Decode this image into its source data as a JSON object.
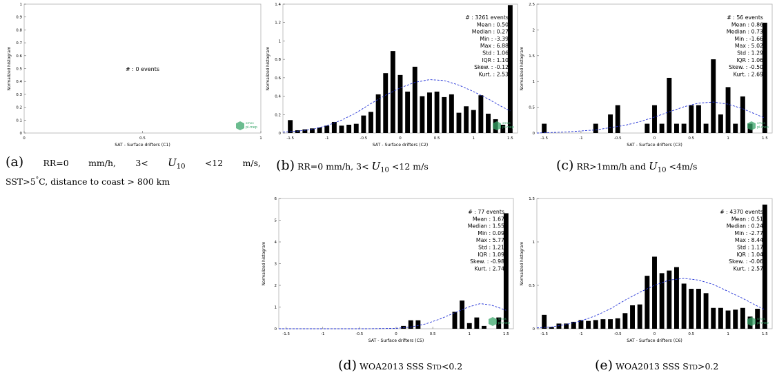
{
  "chart_data": [
    {
      "id": "a",
      "type": "bar",
      "xlabel": "SAT - Surface drifters (C1)",
      "ylabel": "Normalized histogram",
      "xlim": [
        0,
        1
      ],
      "ylim": [
        0,
        1
      ],
      "xticks": [
        "0",
        "0.5",
        "1"
      ],
      "yticks": [
        "0",
        "0.1",
        "0.2",
        "0.3",
        "0.4",
        "0.5",
        "0.6",
        "0.7",
        "0.8",
        "0.9",
        "1"
      ],
      "stats_lines": [
        "#  : 0 events"
      ],
      "x": [],
      "values": [],
      "fit": []
    },
    {
      "id": "b",
      "type": "bar",
      "xlabel": "SAT - Surface drifters (C2)",
      "ylabel": "Normalized histogram",
      "xlim": [
        -1.6,
        1.6
      ],
      "ylim": [
        0,
        1.4
      ],
      "xticks": [
        "-1.5",
        "-1",
        "-0.5",
        "0",
        "0.5",
        "1",
        "1.5"
      ],
      "yticks": [
        "0",
        "0.2",
        "0.4",
        "0.6",
        "0.8",
        "1",
        "1.2",
        "1.4"
      ],
      "stats_lines": [
        "#  : 3261 events",
        "Mean : 0.50",
        "Median : 0.27",
        "Min : -3.39",
        "Max : 6.88",
        "Std : 1.06",
        "IQR : 1.10",
        "Skew. : -0.12",
        "Kurt. : 2.53"
      ],
      "x": [
        -1.5,
        -1.4,
        -1.3,
        -1.2,
        -1.1,
        -1.0,
        -0.9,
        -0.8,
        -0.7,
        -0.6,
        -0.5,
        -0.4,
        -0.3,
        -0.2,
        -0.1,
        0.0,
        0.1,
        0.2,
        0.3,
        0.4,
        0.5,
        0.6,
        0.7,
        0.8,
        0.9,
        1.0,
        1.1,
        1.2,
        1.3,
        1.4,
        1.5
      ],
      "values": [
        0.14,
        0.03,
        0.04,
        0.05,
        0.06,
        0.08,
        0.12,
        0.08,
        0.09,
        0.1,
        0.19,
        0.23,
        0.42,
        0.65,
        0.89,
        0.63,
        0.45,
        0.72,
        0.4,
        0.44,
        0.45,
        0.39,
        0.42,
        0.22,
        0.29,
        0.25,
        0.41,
        0.21,
        0.15,
        0.09,
        1.39
      ],
      "fit": [
        [
          -1.6,
          0.01
        ],
        [
          -1.4,
          0.02
        ],
        [
          -1.2,
          0.04
        ],
        [
          -1.0,
          0.08
        ],
        [
          -0.8,
          0.14
        ],
        [
          -0.6,
          0.22
        ],
        [
          -0.4,
          0.32
        ],
        [
          -0.2,
          0.41
        ],
        [
          0.0,
          0.49
        ],
        [
          0.2,
          0.55
        ],
        [
          0.4,
          0.58
        ],
        [
          0.6,
          0.57
        ],
        [
          0.8,
          0.52
        ],
        [
          1.0,
          0.45
        ],
        [
          1.2,
          0.37
        ],
        [
          1.4,
          0.28
        ],
        [
          1.5,
          0.24
        ]
      ]
    },
    {
      "id": "c",
      "type": "bar",
      "xlabel": "SAT - Surface drifters (C3)",
      "ylabel": "Normalized histogram",
      "xlim": [
        -1.6,
        1.6
      ],
      "ylim": [
        0,
        2.5
      ],
      "xticks": [
        "-1.5",
        "-1",
        "-0.5",
        "0",
        "0.5",
        "1",
        "1.5"
      ],
      "yticks": [
        "0",
        "0.5",
        "1",
        "1.5",
        "2",
        "2.5"
      ],
      "stats_lines": [
        "#  : 56 events",
        "Mean : 0.86",
        "Median : 0.73",
        "Min : -1.66",
        "Max : 5.02",
        "Std : 1.29",
        "IQR : 1.06",
        "Skew. : -0.50",
        "Kurt. : 2.69"
      ],
      "x": [
        -1.5,
        -0.8,
        -0.6,
        -0.5,
        -0.1,
        0.0,
        0.1,
        0.2,
        0.3,
        0.4,
        0.5,
        0.6,
        0.7,
        0.8,
        0.9,
        1.0,
        1.1,
        1.2,
        1.3,
        1.5
      ],
      "values": [
        0.18,
        0.18,
        0.36,
        0.54,
        0.18,
        0.54,
        0.18,
        1.07,
        0.18,
        0.18,
        0.54,
        0.54,
        0.18,
        1.43,
        0.36,
        0.89,
        0.18,
        0.71,
        0.18,
        2.14
      ],
      "fit": [
        [
          -1.6,
          0.0
        ],
        [
          -1.2,
          0.02
        ],
        [
          -0.8,
          0.06
        ],
        [
          -0.4,
          0.15
        ],
        [
          -0.2,
          0.22
        ],
        [
          0.0,
          0.31
        ],
        [
          0.2,
          0.41
        ],
        [
          0.4,
          0.51
        ],
        [
          0.6,
          0.58
        ],
        [
          0.8,
          0.6
        ],
        [
          1.0,
          0.56
        ],
        [
          1.2,
          0.47
        ],
        [
          1.4,
          0.35
        ],
        [
          1.5,
          0.29
        ]
      ]
    },
    {
      "id": "d",
      "type": "bar",
      "xlabel": "SAT - Surface drifters (C5)",
      "ylabel": "Normalized histogram",
      "xlim": [
        -1.6,
        1.6
      ],
      "ylim": [
        0,
        6
      ],
      "xticks": [
        "-1.5",
        "-1",
        "-0.5",
        "0",
        "0.5",
        "1",
        "1.5"
      ],
      "yticks": [
        "0",
        "1",
        "2",
        "3",
        "4",
        "5",
        "6"
      ],
      "stats_lines": [
        "#  : 77 events",
        "Mean : 1.67",
        "Median : 1.55",
        "Min : 0.09",
        "Max : 5.77",
        "Std : 1.21",
        "IQR : 1.09",
        "Skew. : -0.98",
        "Kurt. : 2.74"
      ],
      "x": [
        0.1,
        0.2,
        0.3,
        0.8,
        0.9,
        1.0,
        1.1,
        1.2,
        1.4,
        1.5
      ],
      "values": [
        0.13,
        0.39,
        0.39,
        0.78,
        1.3,
        0.26,
        0.52,
        0.13,
        0.52,
        5.32
      ],
      "fit": [
        [
          -1.6,
          0.0
        ],
        [
          -0.4,
          0.0
        ],
        [
          0.0,
          0.02
        ],
        [
          0.2,
          0.08
        ],
        [
          0.4,
          0.22
        ],
        [
          0.6,
          0.45
        ],
        [
          0.8,
          0.74
        ],
        [
          1.0,
          1.02
        ],
        [
          1.15,
          1.16
        ],
        [
          1.3,
          1.09
        ],
        [
          1.4,
          0.97
        ],
        [
          1.5,
          0.85
        ]
      ]
    },
    {
      "id": "e",
      "type": "bar",
      "xlabel": "SAT - Surface drifters (C6)",
      "ylabel": "Normalized histogram",
      "xlim": [
        -1.6,
        1.6
      ],
      "ylim": [
        0,
        1.5
      ],
      "xticks": [
        "-1.5",
        "-1",
        "-0.5",
        "0",
        "0.5",
        "1",
        "1.5"
      ],
      "yticks": [
        "0",
        "0.5",
        "1",
        "1.5"
      ],
      "stats_lines": [
        "#  : 4370 events",
        "Mean : 0.51",
        "Median : 0.24",
        "Min : -2.77",
        "Max : 8.44",
        "Std : 1.17",
        "IQR : 1.04",
        "Skew. : -0.06",
        "Kurt. : 2.57"
      ],
      "x": [
        -1.5,
        -1.4,
        -1.3,
        -1.2,
        -1.1,
        -1.0,
        -0.9,
        -0.8,
        -0.7,
        -0.6,
        -0.5,
        -0.4,
        -0.3,
        -0.2,
        -0.1,
        0.0,
        0.1,
        0.2,
        0.3,
        0.4,
        0.5,
        0.6,
        0.7,
        0.8,
        0.9,
        1.0,
        1.1,
        1.2,
        1.3,
        1.4,
        1.5
      ],
      "values": [
        0.16,
        0.02,
        0.06,
        0.06,
        0.08,
        0.1,
        0.09,
        0.1,
        0.11,
        0.11,
        0.12,
        0.18,
        0.27,
        0.28,
        0.61,
        0.83,
        0.64,
        0.67,
        0.71,
        0.52,
        0.46,
        0.46,
        0.41,
        0.24,
        0.24,
        0.21,
        0.22,
        0.24,
        0.14,
        0.23,
        1.43
      ],
      "fit": [
        [
          -1.6,
          0.01
        ],
        [
          -1.4,
          0.02
        ],
        [
          -1.2,
          0.05
        ],
        [
          -1.0,
          0.09
        ],
        [
          -0.8,
          0.15
        ],
        [
          -0.6,
          0.23
        ],
        [
          -0.4,
          0.33
        ],
        [
          -0.2,
          0.42
        ],
        [
          0.0,
          0.5
        ],
        [
          0.2,
          0.56
        ],
        [
          0.4,
          0.58
        ],
        [
          0.6,
          0.56
        ],
        [
          0.8,
          0.51
        ],
        [
          1.0,
          0.43
        ],
        [
          1.2,
          0.35
        ],
        [
          1.4,
          0.26
        ],
        [
          1.5,
          0.22
        ]
      ]
    }
  ],
  "captions": {
    "a": {
      "label": "(a)",
      "text": "RR=0 mm/h, 3< U10 <12 m/s, SST>5°C, distance to coast > 800 km"
    },
    "b": {
      "label": "(b)",
      "text": "RR=0 mm/h, 3< U10 <12 m/s"
    },
    "c": {
      "label": "(c)",
      "text": "RR>1mm/h and U10 <4m/s"
    },
    "d": {
      "label": "(d)",
      "text": "WOA2013 SSS Std<0.2"
    },
    "e": {
      "label": "(e)",
      "text": "WOA2013 SSS Std>0.2"
    }
  },
  "caption_parts": {
    "a": {
      "line1": [
        "RR=0",
        "mm/h,",
        "3<",
        "U",
        "10",
        "<12",
        "m/s,"
      ],
      "line2": [
        "SST>5",
        "°",
        "C, distance to coast > 800 km"
      ]
    },
    "b": [
      "RR=0 mm/h, 3< ",
      "U",
      "10",
      " <12 m/s"
    ],
    "c": [
      "RR>1mm/h and ",
      "U",
      "10",
      " <4m/s"
    ]
  },
  "logo": {
    "line1": "smos",
    "line2": "pi-mep"
  },
  "colors": {
    "bars": "#000000",
    "fit": "#1f2fd6",
    "logo": "#3aa66a",
    "frame": "#b0b0b0"
  }
}
